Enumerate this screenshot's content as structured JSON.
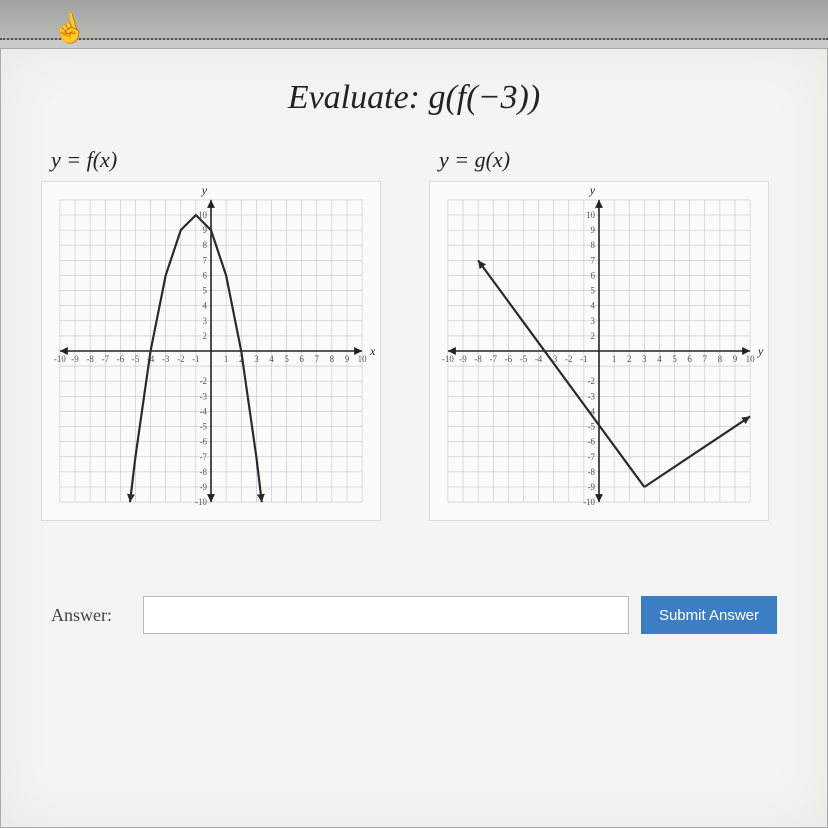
{
  "title_prefix": "Evaluate: ",
  "title_expr": "g(f(−3))",
  "graph_f": {
    "label": "y = f(x)",
    "type": "parabola",
    "xlim": [
      -10,
      10
    ],
    "ylim": [
      -10,
      10
    ],
    "xtick_step": 1,
    "ytick_step": 1,
    "xtick_labels": [
      "-10",
      "-9",
      "-8",
      "-7",
      "-6",
      "-5",
      "-4",
      "-3",
      "-2",
      "-1",
      "",
      "1",
      "2",
      "3",
      "4",
      "5",
      "6",
      "7",
      "8",
      "9",
      "10"
    ],
    "ytick_labels": [
      "-10",
      "-9",
      "-8",
      "-7",
      "-6",
      "-5",
      "-4",
      "-3",
      "-2",
      "",
      "",
      "2",
      "3",
      "4",
      "5",
      "6",
      "7",
      "8",
      "9",
      "10"
    ],
    "axis_label_x": "x",
    "axis_label_y": "y",
    "vertex": [
      -1,
      9
    ],
    "a": -1,
    "curve_points": [
      [
        -5.36,
        -10
      ],
      [
        -5,
        -7
      ],
      [
        -4,
        0
      ],
      [
        -3,
        5
      ],
      [
        -2,
        8
      ],
      [
        -1,
        9
      ],
      [
        0,
        8
      ],
      [
        1,
        5
      ],
      [
        2,
        0
      ],
      [
        3,
        -7
      ],
      [
        3.36,
        -10
      ]
    ],
    "curve_color": "#2a2a2a",
    "curve_width": 2.2,
    "background_color": "#fbfcfa",
    "grid_color": "#bfc4c8",
    "axis_color": "#222222",
    "tick_fontsize": 9,
    "axis_label_fontsize": 12,
    "arrows_on_curve": true
  },
  "graph_g": {
    "label": "y = g(x)",
    "type": "piecewise-linear",
    "xlim": [
      -10,
      10
    ],
    "ylim": [
      -10,
      10
    ],
    "xtick_step": 1,
    "ytick_step": 1,
    "xtick_labels": [
      "-10",
      "-9",
      "-8",
      "-7",
      "-6",
      "-5",
      "-4",
      "-3",
      "-2",
      "-1",
      "",
      "1",
      "2",
      "3",
      "4",
      "5",
      "6",
      "7",
      "8",
      "9",
      "10"
    ],
    "ytick_labels": [
      "-10",
      "-9",
      "-8",
      "-7",
      "-6",
      "-5",
      "-4",
      "-3",
      "-2",
      "",
      "",
      "2",
      "3",
      "4",
      "5",
      "6",
      "7",
      "8",
      "9",
      "10"
    ],
    "axis_label_x": "y",
    "axis_label_y": "y",
    "segments": [
      {
        "points": [
          [
            -8,
            6
          ],
          [
            3,
            -9
          ]
        ],
        "arrow_start": true,
        "arrow_end": false
      },
      {
        "points": [
          [
            3,
            -9
          ],
          [
            10,
            -4.33
          ]
        ],
        "arrow_start": false,
        "arrow_end": true
      }
    ],
    "curve_color": "#2a2a2a",
    "curve_width": 2.2,
    "background_color": "#fbfcfa",
    "grid_color": "#bfc4c8",
    "axis_color": "#222222",
    "tick_fontsize": 9,
    "axis_label_fontsize": 12
  },
  "answer": {
    "label": "Answer:",
    "value": "",
    "placeholder": "",
    "submit_label": "Submit Answer"
  },
  "colors": {
    "page_bg": "#c8cbc6",
    "worksheet_bg": "#f4f5f2",
    "submit_bg": "#3b7ec4",
    "submit_fg": "#ffffff"
  }
}
